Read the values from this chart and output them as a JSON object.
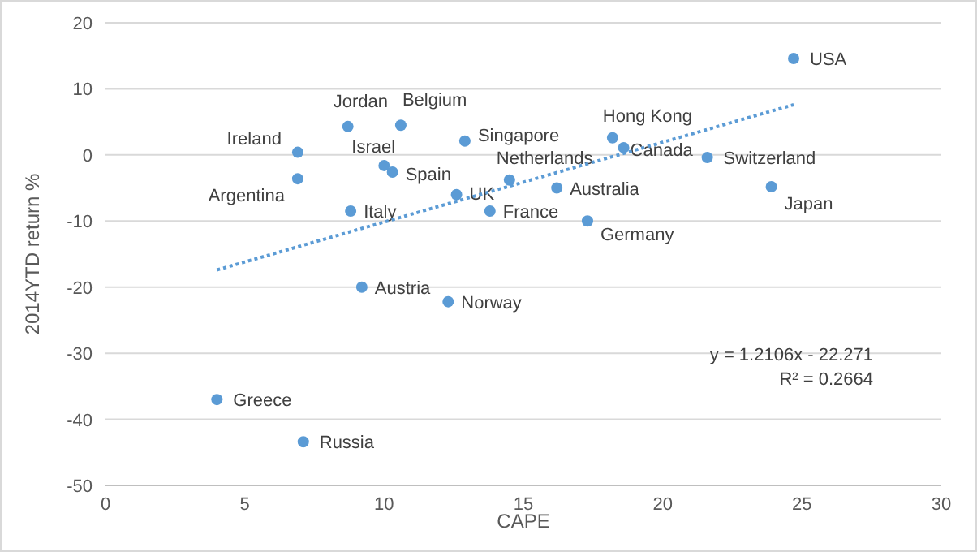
{
  "chart_data": {
    "type": "scatter",
    "xlabel": "CAPE",
    "ylabel": "2014YTD return %",
    "xlim": [
      0,
      30
    ],
    "xticks": [
      0,
      5,
      10,
      15,
      20,
      25,
      30
    ],
    "ylim": [
      -50,
      20
    ],
    "yticks": [
      -50,
      -40,
      -30,
      -20,
      -10,
      0,
      10,
      20
    ],
    "grid": "y",
    "marker": "circle",
    "series": [
      {
        "color": "#5b9bd5",
        "x": [
          24.7,
          18.2,
          18.6,
          21.6,
          23.9,
          10.6,
          12.9,
          8.7,
          6.9,
          6.9,
          10.0,
          10.3,
          12.6,
          14.5,
          16.2,
          13.8,
          17.3,
          8.8,
          9.2,
          12.3,
          4.0,
          7.1
        ],
        "values": [
          14.6,
          2.6,
          1.1,
          -0.4,
          -4.8,
          4.5,
          2.1,
          4.3,
          0.4,
          -3.6,
          -1.6,
          -2.6,
          -6.0,
          -3.8,
          -5.0,
          -8.5,
          -10.0,
          -8.5,
          -20.0,
          -22.2,
          -37.0,
          -43.4
        ],
        "value_labels": [
          "USA",
          "Hong Kong",
          "Canada",
          "Switzerland",
          "Japan",
          "Belgium",
          "Singapore",
          "Jordan",
          "Ireland",
          "Argentina",
          "Israel",
          "Spain",
          "UK",
          "Netherlands",
          "Australia",
          "France",
          "Germany",
          "Italy",
          "Austria",
          "Norway",
          "Greece",
          "Russia"
        ]
      },
      {
        "type": "line",
        "color": "#5b9bd5",
        "line_style": "dotted",
        "marker": "none",
        "x": [
          4.0,
          24.7
        ],
        "values": [
          -17.4,
          7.6
        ]
      }
    ],
    "annotations": [
      "y = 1.2106x - 22.271",
      "R² = 0.2664"
    ]
  }
}
